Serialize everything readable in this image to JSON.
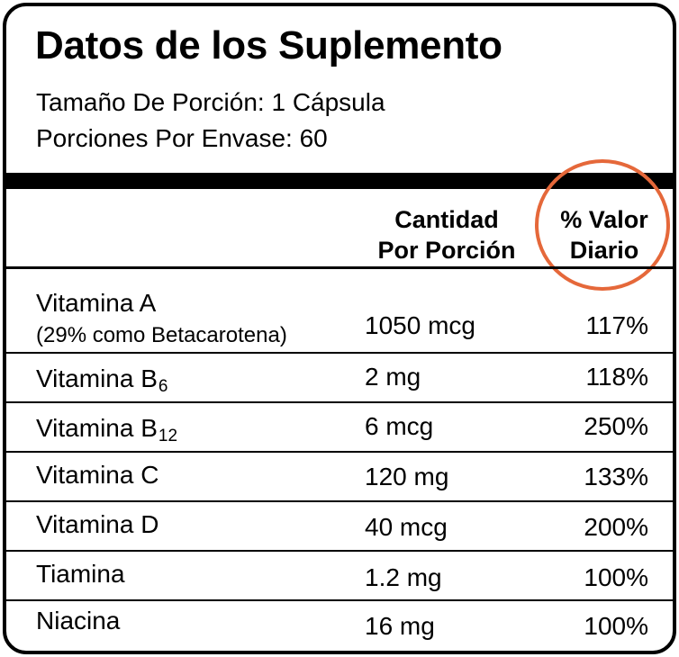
{
  "title": "Datos de los Suplemento",
  "serving_size": "Tamaño De Porción: 1 Cápsula",
  "servings_per_container": "Porciones Por Envase: 60",
  "columns": {
    "amount_line1": "Cantidad",
    "amount_line2": "Por Porción",
    "dv_line1": "% Valor",
    "dv_line2": "Diario"
  },
  "highlight_color": "#e5683a",
  "nutrients": [
    {
      "name": "Vitamina A",
      "note": "(29% como Betacarotena)",
      "amount": "1050 mcg",
      "dv": "117%"
    },
    {
      "name": "Vitamina B",
      "sub": "6",
      "amount": "2 mg",
      "dv": "118%"
    },
    {
      "name": "Vitamina B",
      "sub": "12",
      "amount": "6 mcg",
      "dv": "250%"
    },
    {
      "name": "Vitamina C",
      "amount": "120 mg",
      "dv": "133%"
    },
    {
      "name": "Vitamina D",
      "amount": "40 mcg",
      "dv": "200%"
    },
    {
      "name": "Tiamina",
      "amount": "1.2 mg",
      "dv": "100%"
    },
    {
      "name": "Niacina",
      "amount": "16 mg",
      "dv": "100%"
    }
  ]
}
